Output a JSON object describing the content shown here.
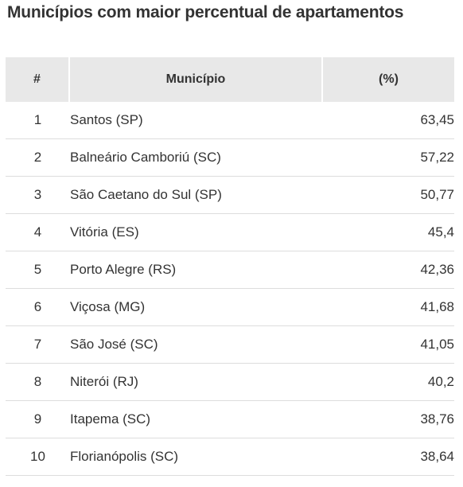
{
  "chart_data": {
    "type": "table",
    "title": "Municípios com maior percentual de apartamentos",
    "columns": [
      "#",
      "Município",
      "(%)"
    ],
    "rows": [
      {
        "rank": "1",
        "municipio": "Santos (SP)",
        "percentual": "63,45"
      },
      {
        "rank": "2",
        "municipio": "Balneário Camboriú (SC)",
        "percentual": "57,22"
      },
      {
        "rank": "3",
        "municipio": "São Caetano do Sul (SP)",
        "percentual": "50,77"
      },
      {
        "rank": "4",
        "municipio": "Vitória (ES)",
        "percentual": "45,4"
      },
      {
        "rank": "5",
        "municipio": "Porto Alegre (RS)",
        "percentual": "42,36"
      },
      {
        "rank": "6",
        "municipio": "Viçosa (MG)",
        "percentual": "41,68"
      },
      {
        "rank": "7",
        "municipio": "São José (SC)",
        "percentual": "41,05"
      },
      {
        "rank": "8",
        "municipio": "Niterói (RJ)",
        "percentual": "40,2"
      },
      {
        "rank": "9",
        "municipio": "Itapema (SC)",
        "percentual": "38,76"
      },
      {
        "rank": "10",
        "municipio": "Florianópolis (SC)",
        "percentual": "38,64"
      }
    ]
  }
}
